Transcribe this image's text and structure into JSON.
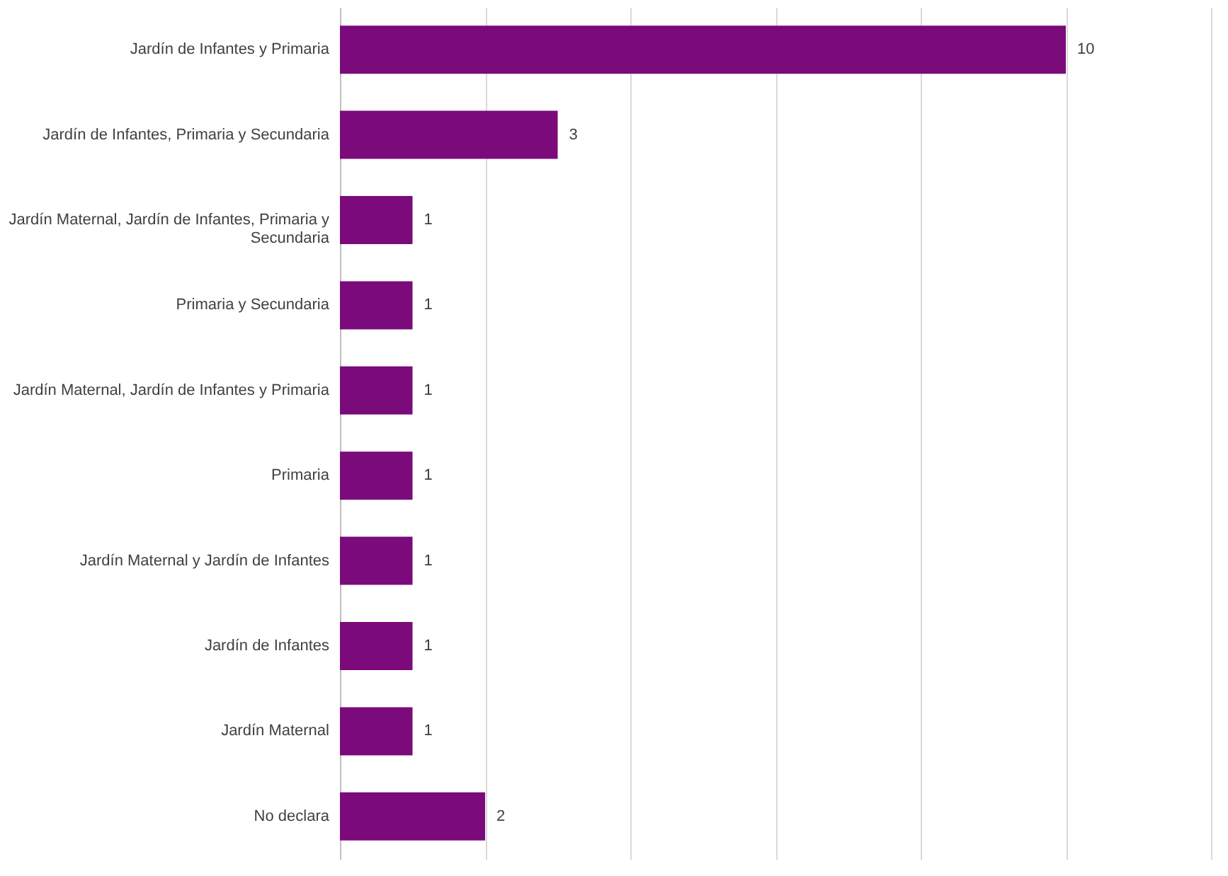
{
  "chart_data": {
    "type": "bar",
    "orientation": "horizontal",
    "categories": [
      "Jardín de Infantes y Primaria",
      "Jardín de Infantes, Primaria y Secundaria",
      "Jardín Maternal, Jardín de Infantes, Primaria y Secundaria",
      "Primaria y Secundaria",
      "Jardín Maternal, Jardín de Infantes y Primaria",
      "Primaria",
      "Jardín Maternal y Jardín de Infantes",
      "Jardín de Infantes",
      "Jardín Maternal",
      "No declara"
    ],
    "values": [
      10,
      3,
      1,
      1,
      1,
      1,
      1,
      1,
      1,
      2
    ],
    "color": "#7b0a7b",
    "xlim": [
      0,
      12
    ],
    "xticks": [
      {
        "value": 0,
        "label": null
      },
      {
        "value": 2,
        "label": null
      },
      {
        "value": 4,
        "label": null
      },
      {
        "value": 6,
        "label": null
      },
      {
        "value": 8,
        "label": null
      },
      {
        "value": 10,
        "label": null
      },
      {
        "value": 12,
        "label": null
      }
    ],
    "grid": "x",
    "tick_labels": "y",
    "data_labels": true
  }
}
